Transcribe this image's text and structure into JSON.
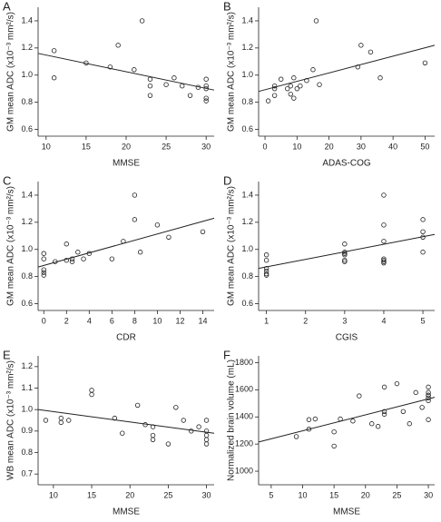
{
  "chart_data": [
    {
      "type": "scatter",
      "panel": "A",
      "xlabel": "MMSE",
      "ylabel": "GM mean ADC (x10⁻³ mm²/s)",
      "x": [
        11,
        11,
        15,
        18,
        19,
        21,
        22,
        23,
        23,
        23,
        25,
        26,
        27,
        28,
        29,
        30,
        30,
        30,
        30,
        30
      ],
      "values": [
        1.18,
        0.98,
        1.09,
        1.06,
        1.22,
        1.04,
        1.4,
        0.97,
        0.92,
        0.85,
        0.93,
        0.98,
        0.92,
        0.85,
        0.91,
        0.97,
        0.92,
        0.9,
        0.83,
        0.81
      ],
      "fit": {
        "x": [
          9,
          31
        ],
        "y": [
          1.16,
          0.89
        ]
      },
      "xlim": [
        9,
        31
      ],
      "ylim": [
        0.55,
        1.5
      ],
      "xticks": [
        10,
        15,
        20,
        25,
        30
      ],
      "yticks": [
        0.6,
        0.8,
        {
          "value": 1,
          "label": "1.0"
        },
        1.2,
        1.4
      ]
    },
    {
      "type": "scatter",
      "panel": "B",
      "xlabel": "ADAS-COG",
      "ylabel": "GM mean ADC (x10⁻³ mm²/s)",
      "x": [
        1,
        3,
        3,
        3,
        5,
        7,
        8,
        8,
        9,
        9,
        10,
        11,
        13,
        15,
        16,
        17,
        29,
        30,
        33,
        36,
        50
      ],
      "values": [
        0.81,
        0.92,
        0.9,
        0.85,
        0.97,
        0.9,
        0.92,
        0.86,
        0.83,
        0.98,
        0.9,
        0.92,
        0.96,
        1.04,
        1.4,
        0.93,
        1.06,
        1.22,
        1.17,
        0.98,
        1.09
      ],
      "fit": {
        "x": [
          -2,
          53
        ],
        "y": [
          0.88,
          1.22
        ]
      },
      "xlim": [
        -2,
        53
      ],
      "ylim": [
        0.55,
        1.5
      ],
      "xticks": [
        0,
        10,
        20,
        30,
        40,
        50
      ],
      "yticks": [
        0.6,
        0.8,
        {
          "value": 1,
          "label": "1.0"
        },
        1.2,
        1.4
      ]
    },
    {
      "type": "scatter",
      "panel": "C",
      "xlabel": "CDR",
      "ylabel": "GM mean ADC (x10⁻³ mm²/s)",
      "x": [
        0,
        0,
        0,
        0,
        0,
        1,
        2,
        2,
        2.5,
        2.5,
        3,
        3.5,
        4,
        6,
        7,
        8,
        8,
        8.5,
        10,
        11,
        14
      ],
      "values": [
        0.97,
        0.93,
        0.85,
        0.83,
        0.81,
        0.91,
        0.92,
        1.04,
        0.91,
        0.93,
        0.98,
        0.93,
        0.97,
        0.93,
        1.06,
        1.4,
        1.22,
        0.98,
        1.18,
        1.09,
        1.13
      ],
      "fit": {
        "x": [
          -0.5,
          15
        ],
        "y": [
          0.87,
          1.23
        ]
      },
      "xlim": [
        -0.5,
        15
      ],
      "ylim": [
        0.55,
        1.5
      ],
      "xticks": [
        0,
        2,
        4,
        6,
        8,
        10,
        12,
        14
      ],
      "yticks": [
        0.6,
        0.8,
        {
          "value": 1,
          "label": "1.0"
        },
        1.2,
        1.4
      ]
    },
    {
      "type": "scatter",
      "panel": "D",
      "xlabel": "CGIS",
      "ylabel": "GM mean ADC (x10⁻³ mm²/s)",
      "x": [
        1,
        1,
        1,
        1,
        1,
        1,
        3,
        3,
        3,
        3,
        3,
        3,
        4,
        4,
        4,
        4,
        4,
        4,
        4,
        5,
        5,
        5,
        5
      ],
      "values": [
        0.96,
        0.92,
        0.86,
        0.84,
        0.82,
        0.81,
        1.04,
        0.98,
        0.97,
        0.96,
        0.92,
        0.91,
        1.4,
        1.18,
        1.06,
        0.93,
        0.92,
        0.91,
        0.9,
        1.22,
        1.13,
        1.09,
        0.98
      ],
      "fit": {
        "x": [
          0.8,
          5.3
        ],
        "y": [
          0.86,
          1.11
        ]
      },
      "xlim": [
        0.8,
        5.3
      ],
      "ylim": [
        0.55,
        1.5
      ],
      "xticks": [
        1,
        2,
        3,
        4,
        5
      ],
      "yticks": [
        0.6,
        0.8,
        {
          "value": 1,
          "label": "1.0"
        },
        1.2,
        1.4
      ]
    },
    {
      "type": "scatter",
      "panel": "E",
      "xlabel": "MMSE",
      "ylabel": "WB mean ADC (x10⁻³ mm²/s)",
      "x": [
        9,
        11,
        11,
        12,
        15,
        15,
        18,
        19,
        21,
        22,
        23,
        23,
        23,
        25,
        26,
        27,
        28,
        29,
        30,
        30,
        30,
        30,
        30
      ],
      "values": [
        0.95,
        0.96,
        0.94,
        0.95,
        1.09,
        1.07,
        0.96,
        0.89,
        1.02,
        0.93,
        0.92,
        0.88,
        0.86,
        0.84,
        1.01,
        0.95,
        0.9,
        0.92,
        0.95,
        0.9,
        0.88,
        0.86,
        0.84
      ],
      "fit": {
        "x": [
          8,
          31
        ],
        "y": [
          1.0,
          0.89
        ]
      },
      "xlim": [
        8,
        31
      ],
      "ylim": [
        0.65,
        1.25
      ],
      "xticks": [
        10,
        15,
        20,
        25,
        30
      ],
      "yticks": [
        0.7,
        0.8,
        0.9,
        {
          "value": 1,
          "label": "1.0"
        },
        1.1,
        1.2
      ]
    },
    {
      "type": "scatter",
      "panel": "F",
      "xlabel": "MMSE",
      "ylabel": "Normalized brain volume (mL)",
      "x": [
        9,
        11,
        11,
        12,
        15,
        15,
        16,
        18,
        19,
        21,
        22,
        23,
        23,
        23,
        25,
        26,
        27,
        28,
        29,
        30,
        30,
        30,
        30,
        30,
        30,
        30
      ],
      "values": [
        1255,
        1310,
        1380,
        1385,
        1185,
        1290,
        1385,
        1370,
        1555,
        1350,
        1330,
        1620,
        1440,
        1420,
        1645,
        1440,
        1350,
        1580,
        1470,
        1620,
        1580,
        1560,
        1540,
        1520,
        1380,
        1560
      ],
      "fit": {
        "x": [
          3,
          31
        ],
        "y": [
          1215,
          1545
        ]
      },
      "xlim": [
        3,
        31
      ],
      "ylim": [
        900,
        1850
      ],
      "xticks": [
        5,
        10,
        15,
        20,
        25,
        30
      ],
      "yticks": [
        1000,
        1200,
        1400,
        1600,
        1800
      ]
    }
  ]
}
